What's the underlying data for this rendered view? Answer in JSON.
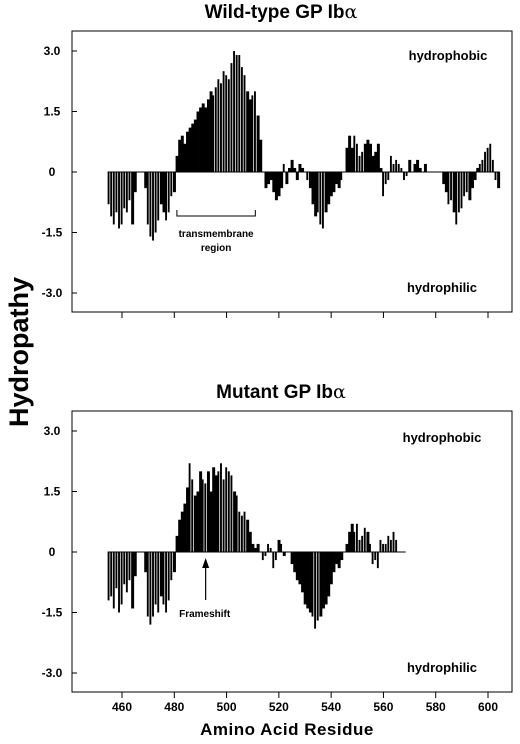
{
  "ylabel": "Hydropathy",
  "xlabel": "Amino Acid Residue",
  "chart_data": [
    {
      "type": "bar",
      "title": "Wild-type GP Ib",
      "title_symbol": "α",
      "ylim": [
        -3.0,
        3.0
      ],
      "xlim": [
        453,
        606
      ],
      "y_ticks": [
        "3.0",
        "1.5",
        "0",
        "-1.5",
        "-3.0"
      ],
      "x_ticks": [
        "460",
        "480",
        "500",
        "520",
        "540",
        "560",
        "580",
        "600"
      ],
      "region_labels": [
        "hydrophobic",
        "hydrophilic"
      ],
      "annotation_lines": [
        "transmembrane",
        "region"
      ],
      "annotation_span": [
        481,
        511
      ],
      "x": [
        455,
        456,
        457,
        458,
        459,
        460,
        461,
        462,
        463,
        464,
        465,
        466,
        467,
        468,
        469,
        470,
        471,
        472,
        473,
        474,
        475,
        476,
        477,
        478,
        479,
        480,
        481,
        482,
        483,
        484,
        485,
        486,
        487,
        488,
        489,
        490,
        491,
        492,
        493,
        494,
        495,
        496,
        497,
        498,
        499,
        500,
        501,
        502,
        503,
        504,
        505,
        506,
        507,
        508,
        509,
        510,
        511,
        512,
        513,
        514,
        515,
        516,
        517,
        518,
        519,
        520,
        521,
        522,
        523,
        524,
        525,
        526,
        527,
        528,
        529,
        530,
        531,
        532,
        533,
        534,
        535,
        536,
        537,
        538,
        539,
        540,
        541,
        542,
        543,
        544,
        545,
        546,
        547,
        548,
        549,
        550,
        551,
        552,
        553,
        554,
        555,
        556,
        557,
        558,
        559,
        560,
        561,
        562,
        563,
        564,
        565,
        566,
        567,
        568,
        569,
        570,
        571,
        572,
        573,
        574,
        575,
        576,
        577,
        578,
        579,
        580,
        581,
        582,
        583,
        584,
        585,
        586,
        587,
        588,
        589,
        590,
        591,
        592,
        593,
        594,
        595,
        596,
        597,
        598,
        599,
        600,
        601,
        602,
        603,
        604
      ],
      "values": [
        -0.8,
        -1.1,
        -1.3,
        -1.0,
        -1.4,
        -1.3,
        -0.9,
        -1.0,
        -0.7,
        -1.3,
        -0.5,
        0,
        0,
        0,
        -0.4,
        -1.3,
        -1.6,
        -1.7,
        -1.5,
        -1.2,
        -0.8,
        -1.0,
        -1.2,
        -1.0,
        -0.6,
        -0.5,
        0.4,
        0.8,
        0.9,
        0.7,
        1.0,
        1.1,
        1.2,
        1.3,
        1.5,
        1.6,
        1.7,
        1.6,
        1.8,
        2.0,
        1.9,
        2.1,
        2.3,
        2.2,
        2.5,
        2.4,
        2.3,
        2.7,
        3.0,
        2.9,
        2.9,
        2.6,
        2.4,
        2.0,
        1.8,
        1.9,
        2.0,
        1.4,
        0.8,
        0,
        -0.4,
        -0.3,
        -0.2,
        -0.5,
        -0.7,
        -0.6,
        -0.4,
        0.2,
        -0.3,
        0.1,
        0.3,
        0.1,
        -0.2,
        0.2,
        0.1,
        0,
        -0.2,
        -0.4,
        -0.8,
        -1.1,
        -1.0,
        -1.3,
        -1.4,
        -1.0,
        -0.8,
        -0.6,
        -0.5,
        -0.3,
        -0.4,
        -0.2,
        0,
        0.6,
        0.9,
        0.6,
        0.9,
        0.7,
        0.4,
        0.5,
        0.7,
        0.8,
        0.7,
        0.4,
        0.5,
        0.7,
        0.1,
        -0.6,
        -0.3,
        -0.2,
        0.4,
        0.2,
        0.3,
        0.2,
        0.1,
        -0.2,
        -0.1,
        0.3,
        0,
        0.2,
        0.3,
        0.1,
        0,
        0.2,
        0,
        0,
        0,
        0,
        0,
        0,
        -0.3,
        -0.5,
        -0.8,
        -0.7,
        -1.0,
        -1.3,
        -1.0,
        -0.9,
        -0.6,
        -0.5,
        -0.7,
        -0.4,
        -0.2,
        0.1,
        0.2,
        0.3,
        0.5,
        0.6,
        0.7,
        0.3,
        -0.2,
        -0.4
      ],
      "edge_bars": [
        455,
        456,
        457,
        458,
        459,
        460,
        461,
        462,
        463,
        470,
        471,
        472,
        473,
        474,
        477,
        478,
        479,
        495,
        496,
        497,
        498,
        499,
        500,
        501,
        502,
        503,
        504,
        505,
        506,
        507,
        510,
        511,
        522,
        530,
        531,
        535,
        536,
        537,
        544,
        549,
        550,
        551,
        552,
        560,
        561,
        562,
        563,
        564,
        565,
        566,
        567,
        568,
        569,
        575,
        585,
        586,
        588,
        589,
        590,
        591,
        592,
        597,
        598,
        599,
        600,
        601,
        602,
        603
      ]
    },
    {
      "type": "bar",
      "title": "Mutant GP Ib",
      "title_symbol": "α",
      "ylim": [
        -3.0,
        3.0
      ],
      "xlim": [
        453,
        606
      ],
      "y_ticks": [
        "3.0",
        "1.5",
        "0",
        "-1.5",
        "-3.0"
      ],
      "x_ticks": [
        "460",
        "480",
        "500",
        "520",
        "540",
        "560",
        "580",
        "600"
      ],
      "region_labels": [
        "hydrophobic",
        "hydrophilic"
      ],
      "annotation_lines": [
        "Frameshift"
      ],
      "annotation_at": 492,
      "x": [
        455,
        456,
        457,
        458,
        459,
        460,
        461,
        462,
        463,
        464,
        465,
        466,
        467,
        468,
        469,
        470,
        471,
        472,
        473,
        474,
        475,
        476,
        477,
        478,
        479,
        480,
        481,
        482,
        483,
        484,
        485,
        486,
        487,
        488,
        489,
        490,
        491,
        492,
        493,
        494,
        495,
        496,
        497,
        498,
        499,
        500,
        501,
        502,
        503,
        504,
        505,
        506,
        507,
        508,
        509,
        510,
        511,
        512,
        513,
        514,
        515,
        516,
        517,
        518,
        519,
        520,
        521,
        522,
        523,
        524,
        525,
        526,
        527,
        528,
        529,
        530,
        531,
        532,
        533,
        534,
        535,
        536,
        537,
        538,
        539,
        540,
        541,
        542,
        543,
        544,
        545,
        546,
        547,
        548,
        549,
        550,
        551,
        552,
        553,
        554,
        555,
        556,
        557,
        558,
        559,
        560,
        561,
        562,
        563,
        564,
        565,
        566,
        567,
        568
      ],
      "values": [
        -1.2,
        -1.1,
        -1.4,
        -0.9,
        -1.5,
        -1.3,
        -0.8,
        -1.0,
        -0.7,
        -1.4,
        -0.6,
        0,
        0,
        0,
        -0.5,
        -1.6,
        -1.8,
        -1.6,
        -1.3,
        -1.5,
        -1.1,
        -1.3,
        -1.5,
        -1.2,
        -0.7,
        -0.5,
        0.4,
        0.8,
        1.0,
        1.2,
        1.6,
        2.2,
        1.8,
        1.4,
        1.5,
        2.0,
        1.8,
        1.7,
        2.0,
        1.5,
        2.1,
        1.9,
        2.0,
        2.2,
        1.8,
        2.1,
        2.0,
        1.9,
        1.5,
        1.4,
        1.0,
        0.9,
        1.0,
        0.8,
        0.5,
        0.2,
        0.1,
        0.2,
        0,
        -0.2,
        -0.1,
        0.2,
        0.1,
        -0.4,
        -0.2,
        0.3,
        0.2,
        -0.1,
        0,
        0,
        -0.3,
        -0.5,
        -0.7,
        -0.8,
        -1.0,
        -1.3,
        -1.4,
        -1.5,
        -1.6,
        -1.9,
        -1.7,
        -1.6,
        -1.4,
        -1.3,
        -1.1,
        -0.8,
        -0.5,
        -0.3,
        -0.4,
        -0.2,
        0,
        0.2,
        0.5,
        0.7,
        0.5,
        0.7,
        0.3,
        0.4,
        0.6,
        0.5,
        0.2,
        -0.3,
        -0.2,
        -0.4,
        0.3,
        0.2,
        0.2,
        0.4,
        0.3,
        0.5,
        0.3,
        0,
        0,
        0
      ],
      "edge_bars": [
        455,
        456,
        457,
        458,
        459,
        460,
        461,
        462,
        463,
        470,
        471,
        472,
        473,
        474,
        476,
        477,
        478,
        479,
        486,
        487,
        491,
        492,
        497,
        498,
        499,
        500,
        501,
        502,
        504,
        505,
        506,
        507,
        514,
        515,
        516,
        517,
        518,
        519,
        521,
        533,
        534,
        535,
        549,
        550,
        551,
        552,
        553,
        555,
        556,
        557,
        558,
        559,
        560,
        561,
        562,
        563,
        564,
        565,
        566,
        567,
        568
      ]
    }
  ]
}
